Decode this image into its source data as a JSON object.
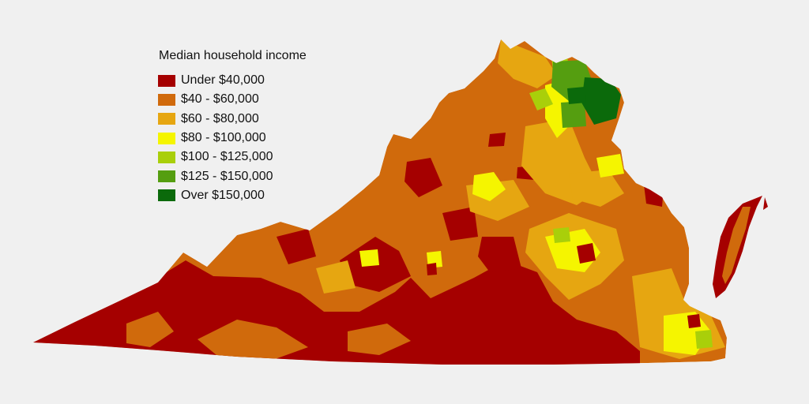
{
  "legend": {
    "title": "Median household income",
    "items": [
      {
        "label": "Under $40,000",
        "color": "#a50000"
      },
      {
        "label": "$40 - $60,000",
        "color": "#d06a0c"
      },
      {
        "label": "$60 - $80,000",
        "color": "#e6a611"
      },
      {
        "label": "$80 - $100,000",
        "color": "#f5f500"
      },
      {
        "label": "$100 - $125,000",
        "color": "#a9cf0a"
      },
      {
        "label": "$125 - $150,000",
        "color": "#559e10"
      },
      {
        "label": "Over $150,000",
        "color": "#0b6a0b"
      }
    ]
  },
  "background_color": "#f0f0f0"
}
